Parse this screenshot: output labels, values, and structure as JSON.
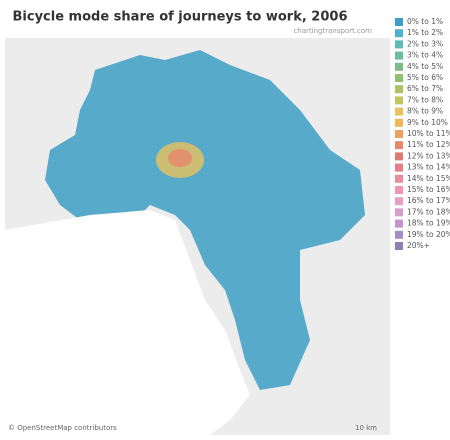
{
  "header": {
    "title": "Bicycle mode share of journeys to work, 2006",
    "source": "chartingtransport.com"
  },
  "legend": {
    "items": [
      {
        "label": "0% to 1%",
        "color": "#3e9fc6"
      },
      {
        "label": "1% to 2%",
        "color": "#4cb2c9"
      },
      {
        "label": "2% to 3%",
        "color": "#5bbdb4"
      },
      {
        "label": "3% to 4%",
        "color": "#6bbd9b"
      },
      {
        "label": "4% to 5%",
        "color": "#7dbd85"
      },
      {
        "label": "5% to 6%",
        "color": "#90c070"
      },
      {
        "label": "6% to 7%",
        "color": "#a8c464"
      },
      {
        "label": "7% to 8%",
        "color": "#c2c65e"
      },
      {
        "label": "8% to 9%",
        "color": "#e8c35c"
      },
      {
        "label": "9% to 10%",
        "color": "#f1b55a"
      },
      {
        "label": "10% to 11%",
        "color": "#eea063"
      },
      {
        "label": "11% to 12%",
        "color": "#e5896b"
      },
      {
        "label": "12% to 13%",
        "color": "#df7a73"
      },
      {
        "label": "13% to 14%",
        "color": "#e47f87"
      },
      {
        "label": "14% to 15%",
        "color": "#ea8b9d"
      },
      {
        "label": "15% to 16%",
        "color": "#ef97b1"
      },
      {
        "label": "16% to 17%",
        "color": "#e89fc3"
      },
      {
        "label": "17% to 18%",
        "color": "#d69dc9"
      },
      {
        "label": "18% to 19%",
        "color": "#c197c9"
      },
      {
        "label": "19% to 20%",
        "color": "#a98dc2"
      },
      {
        "label": "20%+",
        "color": "#8e7fb5"
      }
    ]
  },
  "map": {
    "attribution": "© OpenStreetMap contributors",
    "scale": "10 km"
  }
}
